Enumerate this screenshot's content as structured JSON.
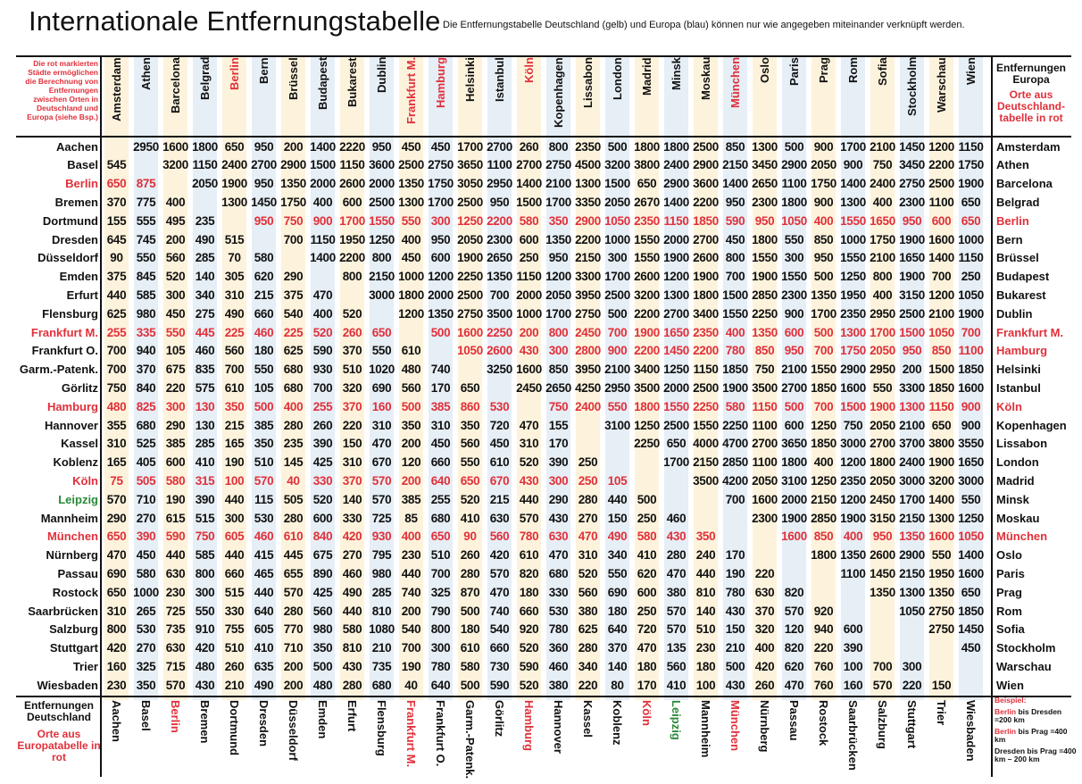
{
  "title": "Internationale Entfernungstabelle",
  "subtitle": "Die Entfernungstabelle Deutschland (gelb) und Europa (blau) können nur wie angegeben miteinander verknüpft werden.",
  "top_left_note": "Die rot markierten Städte ermöglichen die Berechnung von Entfernungen zwischen Orten in Deutschland und Europa (siehe Bsp.)",
  "europe_header": {
    "title": "Entfernungen Europa",
    "subtitle": "Orte aus Deutschland-tabelle in rot"
  },
  "germany_header": {
    "title": "Entfernungen Deutschland",
    "subtitle": "Orte aus Europatabelle in rot"
  },
  "example": {
    "heading": "Beispiel:",
    "line1_red": "Berlin",
    "line1": "bis Dresden =200 km",
    "line2_red": "Berlin",
    "line2": "bis Prag =400 km",
    "line3": "Dresden bis Prag =400 km – 200 km"
  },
  "colors": {
    "red": "#e0303a",
    "green": "#2a8a3a",
    "yellow": "#fdf3dc",
    "blue": "#e6eef6"
  },
  "europe_cities": [
    {
      "name": "Amsterdam",
      "red": false
    },
    {
      "name": "Athen",
      "red": false
    },
    {
      "name": "Barcelona",
      "red": false
    },
    {
      "name": "Belgrad",
      "red": false
    },
    {
      "name": "Berlin",
      "red": true
    },
    {
      "name": "Bern",
      "red": false
    },
    {
      "name": "Brüssel",
      "red": false
    },
    {
      "name": "Budapest",
      "red": false
    },
    {
      "name": "Bukarest",
      "red": false
    },
    {
      "name": "Dublin",
      "red": false
    },
    {
      "name": "Frankfurt M.",
      "red": true
    },
    {
      "name": "Hamburg",
      "red": true
    },
    {
      "name": "Helsinki",
      "red": false
    },
    {
      "name": "Istanbul",
      "red": false
    },
    {
      "name": "Köln",
      "red": true
    },
    {
      "name": "Kopenhagen",
      "red": false
    },
    {
      "name": "Lissabon",
      "red": false
    },
    {
      "name": "London",
      "red": false
    },
    {
      "name": "Madrid",
      "red": false
    },
    {
      "name": "Minsk",
      "red": false
    },
    {
      "name": "Moskau",
      "red": false
    },
    {
      "name": "München",
      "red": true
    },
    {
      "name": "Oslo",
      "red": false
    },
    {
      "name": "Paris",
      "red": false
    },
    {
      "name": "Prag",
      "red": false
    },
    {
      "name": "Rom",
      "red": false
    },
    {
      "name": "Sofia",
      "red": false
    },
    {
      "name": "Stockholm",
      "red": false
    },
    {
      "name": "Warschau",
      "red": false
    },
    {
      "name": "Wien",
      "red": false
    }
  ],
  "germany_cities": [
    {
      "name": "Aachen",
      "color": ""
    },
    {
      "name": "Basel",
      "color": ""
    },
    {
      "name": "Berlin",
      "color": "red"
    },
    {
      "name": "Bremen",
      "color": ""
    },
    {
      "name": "Dortmund",
      "color": ""
    },
    {
      "name": "Dresden",
      "color": ""
    },
    {
      "name": "Düsseldorf",
      "color": ""
    },
    {
      "name": "Emden",
      "color": ""
    },
    {
      "name": "Erfurt",
      "color": ""
    },
    {
      "name": "Flensburg",
      "color": ""
    },
    {
      "name": "Frankfurt M.",
      "color": "red"
    },
    {
      "name": "Frankfurt O.",
      "color": ""
    },
    {
      "name": "Garm.-Patenk.",
      "color": ""
    },
    {
      "name": "Görlitz",
      "color": ""
    },
    {
      "name": "Hamburg",
      "color": "red"
    },
    {
      "name": "Hannover",
      "color": ""
    },
    {
      "name": "Kassel",
      "color": ""
    },
    {
      "name": "Koblenz",
      "color": ""
    },
    {
      "name": "Köln",
      "color": "red"
    },
    {
      "name": "Leipzig",
      "color": "green"
    },
    {
      "name": "Mannheim",
      "color": ""
    },
    {
      "name": "München",
      "color": "red"
    },
    {
      "name": "Nürnberg",
      "color": ""
    },
    {
      "name": "Passau",
      "color": ""
    },
    {
      "name": "Rostock",
      "color": ""
    },
    {
      "name": "Saarbrücken",
      "color": ""
    },
    {
      "name": "Salzburg",
      "color": ""
    },
    {
      "name": "Stuttgart",
      "color": ""
    },
    {
      "name": "Trier",
      "color": ""
    },
    {
      "name": "Wiesbaden",
      "color": ""
    }
  ],
  "right_labels": [
    {
      "name": "Amsterdam",
      "red": false
    },
    {
      "name": "Athen",
      "red": false
    },
    {
      "name": "Barcelona",
      "red": false
    },
    {
      "name": "Belgrad",
      "red": false
    },
    {
      "name": "Berlin",
      "red": true
    },
    {
      "name": "Bern",
      "red": false
    },
    {
      "name": "Brüssel",
      "red": false
    },
    {
      "name": "Budapest",
      "red": false
    },
    {
      "name": "Bukarest",
      "red": false
    },
    {
      "name": "Dublin",
      "red": false
    },
    {
      "name": "Frankfurt M.",
      "red": true
    },
    {
      "name": "Hamburg",
      "red": true
    },
    {
      "name": "Helsinki",
      "red": false
    },
    {
      "name": "Istanbul",
      "red": false
    },
    {
      "name": "Köln",
      "red": true
    },
    {
      "name": "Kopenhagen",
      "red": false
    },
    {
      "name": "Lissabon",
      "red": false
    },
    {
      "name": "London",
      "red": false
    },
    {
      "name": "Madrid",
      "red": false
    },
    {
      "name": "Minsk",
      "red": false
    },
    {
      "name": "Moskau",
      "red": false
    },
    {
      "name": "München",
      "red": true
    },
    {
      "name": "Oslo",
      "red": false
    },
    {
      "name": "Paris",
      "red": false
    },
    {
      "name": "Prag",
      "red": false
    },
    {
      "name": "Rom",
      "red": false
    },
    {
      "name": "Sofia",
      "red": false
    },
    {
      "name": "Stockholm",
      "red": false
    },
    {
      "name": "Warschau",
      "red": false
    },
    {
      "name": "Wien",
      "red": false
    }
  ],
  "rows": [
    [
      "",
      "2950",
      "1600",
      "1800",
      "650",
      "950",
      "200",
      "1400",
      "2220",
      "950",
      "450",
      "450",
      "1700",
      "2700",
      "260",
      "800",
      "2350",
      "500",
      "1800",
      "1800",
      "2500",
      "850",
      "1300",
      "500",
      "900",
      "1700",
      "2100",
      "1450",
      "1200",
      "1150"
    ],
    [
      "545",
      "",
      "3200",
      "1150",
      "2400",
      "2700",
      "2900",
      "1500",
      "1150",
      "3600",
      "2500",
      "2750",
      "3650",
      "1100",
      "2700",
      "2750",
      "4500",
      "3200",
      "3800",
      "2400",
      "2900",
      "2150",
      "3450",
      "2900",
      "2050",
      "900",
      "750",
      "3450",
      "2200",
      "1750"
    ],
    [
      "650",
      "875",
      "",
      "2050",
      "1900",
      "950",
      "1350",
      "2000",
      "2600",
      "2000",
      "1350",
      "1750",
      "3050",
      "2950",
      "1400",
      "2100",
      "1300",
      "1500",
      "650",
      "2900",
      "3600",
      "1400",
      "2650",
      "1100",
      "1750",
      "1400",
      "2400",
      "2750",
      "2500",
      "1900"
    ],
    [
      "370",
      "775",
      "400",
      "",
      "1300",
      "1450",
      "1750",
      "400",
      "600",
      "2500",
      "1300",
      "1700",
      "2500",
      "950",
      "1500",
      "1700",
      "3350",
      "2050",
      "2670",
      "1400",
      "2200",
      "950",
      "2300",
      "1800",
      "900",
      "1300",
      "400",
      "2300",
      "1100",
      "650"
    ],
    [
      "155",
      "555",
      "495",
      "235",
      "",
      "950",
      "750",
      "900",
      "1700",
      "1550",
      "550",
      "300",
      "1250",
      "2200",
      "580",
      "350",
      "2900",
      "1050",
      "2350",
      "1150",
      "1850",
      "590",
      "950",
      "1050",
      "400",
      "1550",
      "1650",
      "950",
      "600",
      "650"
    ],
    [
      "645",
      "745",
      "200",
      "490",
      "515",
      "",
      "700",
      "1150",
      "1950",
      "1250",
      "400",
      "950",
      "2050",
      "2300",
      "600",
      "1350",
      "2200",
      "1000",
      "1550",
      "2000",
      "2700",
      "450",
      "1800",
      "550",
      "850",
      "1000",
      "1750",
      "1900",
      "1600",
      "1000"
    ],
    [
      "90",
      "550",
      "560",
      "285",
      "70",
      "580",
      "",
      "1400",
      "2200",
      "800",
      "450",
      "600",
      "1900",
      "2650",
      "250",
      "950",
      "2150",
      "300",
      "1550",
      "1900",
      "2600",
      "800",
      "1550",
      "300",
      "950",
      "1550",
      "2100",
      "1650",
      "1400",
      "1150"
    ],
    [
      "375",
      "845",
      "520",
      "140",
      "305",
      "620",
      "290",
      "",
      "800",
      "2150",
      "1000",
      "1200",
      "2250",
      "1350",
      "1150",
      "1200",
      "3300",
      "1700",
      "2600",
      "1200",
      "1900",
      "700",
      "1900",
      "1550",
      "500",
      "1250",
      "800",
      "1900",
      "700",
      "250"
    ],
    [
      "440",
      "585",
      "300",
      "340",
      "310",
      "215",
      "375",
      "470",
      "",
      "3000",
      "1800",
      "2000",
      "2500",
      "700",
      "2000",
      "2050",
      "3950",
      "2500",
      "3200",
      "1300",
      "1800",
      "1500",
      "2850",
      "2300",
      "1350",
      "1950",
      "400",
      "3150",
      "1200",
      "1050"
    ],
    [
      "625",
      "980",
      "450",
      "275",
      "490",
      "660",
      "540",
      "400",
      "520",
      "",
      "1200",
      "1350",
      "2750",
      "3500",
      "1000",
      "1700",
      "2750",
      "500",
      "2200",
      "2700",
      "3400",
      "1550",
      "2250",
      "900",
      "1700",
      "2350",
      "2950",
      "2500",
      "2100",
      "1900"
    ],
    [
      "255",
      "335",
      "550",
      "445",
      "225",
      "460",
      "225",
      "520",
      "260",
      "650",
      "",
      "500",
      "1600",
      "2250",
      "200",
      "800",
      "2450",
      "700",
      "1900",
      "1650",
      "2350",
      "400",
      "1350",
      "600",
      "500",
      "1300",
      "1700",
      "1500",
      "1050",
      "700"
    ],
    [
      "700",
      "940",
      "105",
      "460",
      "560",
      "180",
      "625",
      "590",
      "370",
      "550",
      "610",
      "",
      "1050",
      "2600",
      "430",
      "300",
      "2800",
      "900",
      "2200",
      "1450",
      "2200",
      "780",
      "850",
      "950",
      "700",
      "1750",
      "2050",
      "950",
      "850",
      "1100"
    ],
    [
      "700",
      "370",
      "675",
      "835",
      "700",
      "550",
      "680",
      "930",
      "510",
      "1020",
      "480",
      "740",
      "",
      "3250",
      "1600",
      "850",
      "3950",
      "2100",
      "3400",
      "1250",
      "1150",
      "1850",
      "750",
      "2100",
      "1550",
      "2900",
      "2950",
      "200",
      "1500",
      "1850"
    ],
    [
      "750",
      "840",
      "220",
      "575",
      "610",
      "105",
      "680",
      "700",
      "320",
      "690",
      "560",
      "170",
      "650",
      "",
      "2450",
      "2650",
      "4250",
      "2950",
      "3500",
      "2000",
      "2500",
      "1900",
      "3500",
      "2700",
      "1850",
      "1600",
      "550",
      "3300",
      "1850",
      "1600"
    ],
    [
      "480",
      "825",
      "300",
      "130",
      "350",
      "500",
      "400",
      "255",
      "370",
      "160",
      "500",
      "385",
      "860",
      "530",
      "",
      "750",
      "2400",
      "550",
      "1800",
      "1550",
      "2250",
      "580",
      "1150",
      "500",
      "700",
      "1500",
      "1900",
      "1300",
      "1150",
      "900"
    ],
    [
      "355",
      "680",
      "290",
      "130",
      "215",
      "385",
      "280",
      "260",
      "220",
      "310",
      "350",
      "310",
      "350",
      "720",
      "470",
      "155",
      "",
      "3100",
      "1250",
      "2500",
      "1550",
      "2250",
      "1100",
      "600",
      "1250",
      "750",
      "2050",
      "2100",
      "650",
      "900"
    ],
    [
      "310",
      "525",
      "385",
      "285",
      "165",
      "350",
      "235",
      "390",
      "150",
      "470",
      "200",
      "450",
      "560",
      "450",
      "310",
      "170",
      "",
      "",
      "2250",
      "650",
      "4000",
      "4700",
      "2700",
      "3650",
      "1850",
      "3000",
      "2700",
      "3700",
      "3800",
      "3550"
    ],
    [
      "165",
      "405",
      "600",
      "410",
      "190",
      "510",
      "145",
      "425",
      "310",
      "670",
      "120",
      "660",
      "550",
      "610",
      "520",
      "390",
      "250",
      "",
      "",
      "1700",
      "2150",
      "2850",
      "1100",
      "1800",
      "400",
      "1200",
      "1800",
      "2400",
      "1900",
      "1650"
    ],
    [
      "75",
      "505",
      "580",
      "315",
      "100",
      "570",
      "40",
      "330",
      "370",
      "570",
      "200",
      "640",
      "650",
      "670",
      "430",
      "300",
      "250",
      "105",
      "",
      "",
      "3500",
      "4200",
      "2050",
      "3100",
      "1250",
      "2350",
      "2050",
      "3000",
      "3200",
      "3000"
    ],
    [
      "570",
      "710",
      "190",
      "390",
      "440",
      "115",
      "505",
      "520",
      "140",
      "570",
      "385",
      "255",
      "520",
      "215",
      "440",
      "290",
      "280",
      "440",
      "500",
      "",
      "",
      "700",
      "1600",
      "2000",
      "2150",
      "1200",
      "2450",
      "1700",
      "1400",
      "550"
    ],
    [
      "290",
      "270",
      "615",
      "515",
      "300",
      "530",
      "280",
      "600",
      "330",
      "725",
      "85",
      "680",
      "410",
      "630",
      "570",
      "430",
      "270",
      "150",
      "250",
      "460",
      "",
      "",
      "2300",
      "1900",
      "2850",
      "1900",
      "3150",
      "2150",
      "1300",
      "1250"
    ],
    [
      "650",
      "390",
      "590",
      "750",
      "605",
      "460",
      "610",
      "840",
      "420",
      "930",
      "400",
      "650",
      "90",
      "560",
      "780",
      "630",
      "470",
      "490",
      "580",
      "430",
      "350",
      "",
      "",
      "1600",
      "850",
      "400",
      "950",
      "1350",
      "1600",
      "1050"
    ],
    [
      "470",
      "450",
      "440",
      "585",
      "440",
      "415",
      "445",
      "675",
      "270",
      "795",
      "230",
      "510",
      "260",
      "420",
      "610",
      "470",
      "310",
      "340",
      "410",
      "280",
      "240",
      "170",
      "",
      "",
      "1800",
      "1350",
      "2600",
      "2900",
      "550",
      "1400"
    ],
    [
      "690",
      "580",
      "630",
      "800",
      "660",
      "465",
      "655",
      "890",
      "460",
      "980",
      "440",
      "700",
      "280",
      "570",
      "820",
      "680",
      "520",
      "550",
      "620",
      "470",
      "440",
      "190",
      "220",
      "",
      "",
      "1100",
      "1450",
      "2150",
      "1950",
      "1600"
    ],
    [
      "650",
      "1000",
      "230",
      "300",
      "515",
      "440",
      "570",
      "425",
      "490",
      "285",
      "740",
      "325",
      "870",
      "470",
      "180",
      "330",
      "560",
      "690",
      "600",
      "380",
      "810",
      "780",
      "630",
      "820",
      "",
      "",
      "1350",
      "1300",
      "1350",
      "650"
    ],
    [
      "310",
      "265",
      "725",
      "550",
      "330",
      "640",
      "280",
      "560",
      "440",
      "810",
      "200",
      "790",
      "500",
      "740",
      "660",
      "530",
      "380",
      "180",
      "250",
      "570",
      "140",
      "430",
      "370",
      "570",
      "920",
      "",
      "",
      "1050",
      "2750",
      "1850"
    ],
    [
      "800",
      "530",
      "735",
      "910",
      "755",
      "605",
      "770",
      "980",
      "580",
      "1080",
      "540",
      "800",
      "180",
      "540",
      "920",
      "780",
      "625",
      "640",
      "720",
      "570",
      "510",
      "150",
      "320",
      "120",
      "940",
      "600",
      "",
      "",
      "2750",
      "1450"
    ],
    [
      "420",
      "270",
      "630",
      "420",
      "510",
      "410",
      "710",
      "350",
      "810",
      "210",
      "700",
      "300",
      "610",
      "660",
      "520",
      "360",
      "280",
      "370",
      "470",
      "135",
      "230",
      "210",
      "400",
      "820",
      "220",
      "390",
      "",
      "",
      "",
      "450"
    ],
    [
      "160",
      "325",
      "715",
      "480",
      "260",
      "635",
      "200",
      "500",
      "430",
      "735",
      "190",
      "780",
      "580",
      "730",
      "590",
      "460",
      "340",
      "140",
      "180",
      "560",
      "180",
      "500",
      "420",
      "620",
      "760",
      "100",
      "700",
      "300",
      "",
      ""
    ],
    [
      "230",
      "350",
      "570",
      "430",
      "210",
      "490",
      "200",
      "480",
      "280",
      "680",
      "40",
      "640",
      "500",
      "590",
      "520",
      "380",
      "220",
      "80",
      "170",
      "410",
      "100",
      "430",
      "260",
      "470",
      "760",
      "160",
      "570",
      "220",
      "150",
      ""
    ]
  ]
}
